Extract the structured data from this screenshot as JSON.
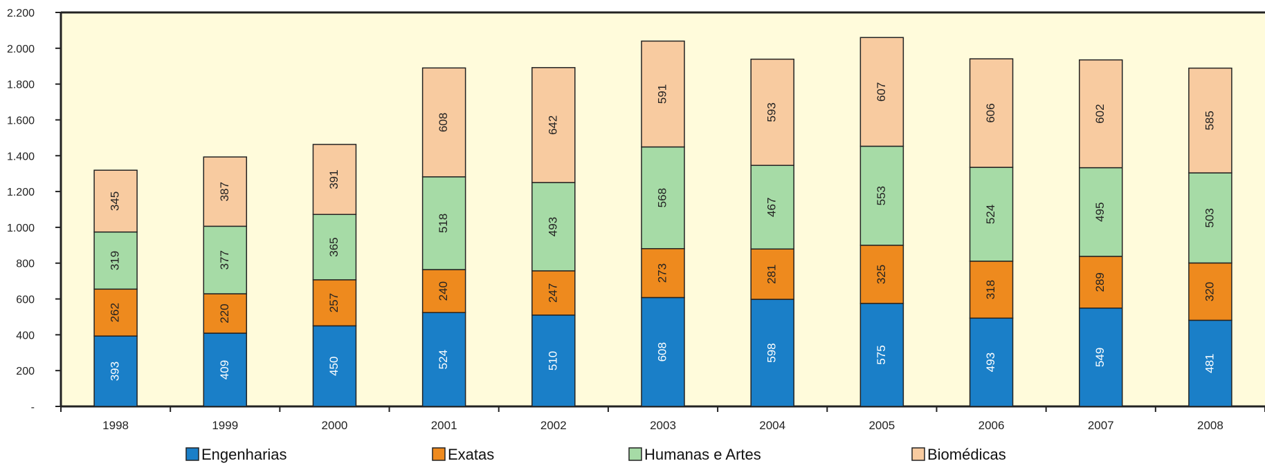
{
  "chart_data": {
    "type": "bar",
    "stacked": true,
    "categories": [
      "1998",
      "1999",
      "2000",
      "2001",
      "2002",
      "2003",
      "2004",
      "2005",
      "2006",
      "2007",
      "2008"
    ],
    "series": [
      {
        "name": "Engenharias",
        "color": "#1a7fc8",
        "label_color": "#ffffff",
        "values": [
          393,
          409,
          450,
          524,
          510,
          608,
          598,
          575,
          493,
          549,
          481
        ]
      },
      {
        "name": "Exatas",
        "color": "#ee8a1e",
        "label_color": "#222222",
        "values": [
          262,
          220,
          257,
          240,
          247,
          273,
          281,
          325,
          318,
          289,
          320
        ]
      },
      {
        "name": "Humanas e Artes",
        "color": "#a6dba6",
        "label_color": "#222222",
        "values": [
          319,
          377,
          365,
          518,
          493,
          568,
          467,
          553,
          524,
          495,
          503
        ]
      },
      {
        "name": "Biomédicas",
        "color": "#f8cba0",
        "label_color": "#222222",
        "values": [
          345,
          387,
          391,
          608,
          642,
          591,
          593,
          607,
          606,
          602,
          585
        ]
      }
    ],
    "ylim": [
      0,
      2200
    ],
    "yticks": [
      0,
      200,
      400,
      600,
      800,
      1000,
      1200,
      1400,
      1600,
      1800,
      2000,
      2200
    ],
    "ytick_labels": [
      "-",
      "200",
      "400",
      "600",
      "800",
      "1.000",
      "1.200",
      "1.400",
      "1.600",
      "1.800",
      "2.000",
      "2.200"
    ],
    "title": "",
    "xlabel": "",
    "ylabel": "",
    "grid": false,
    "legend_position": "bottom",
    "plot_background": "#fffbdb"
  }
}
